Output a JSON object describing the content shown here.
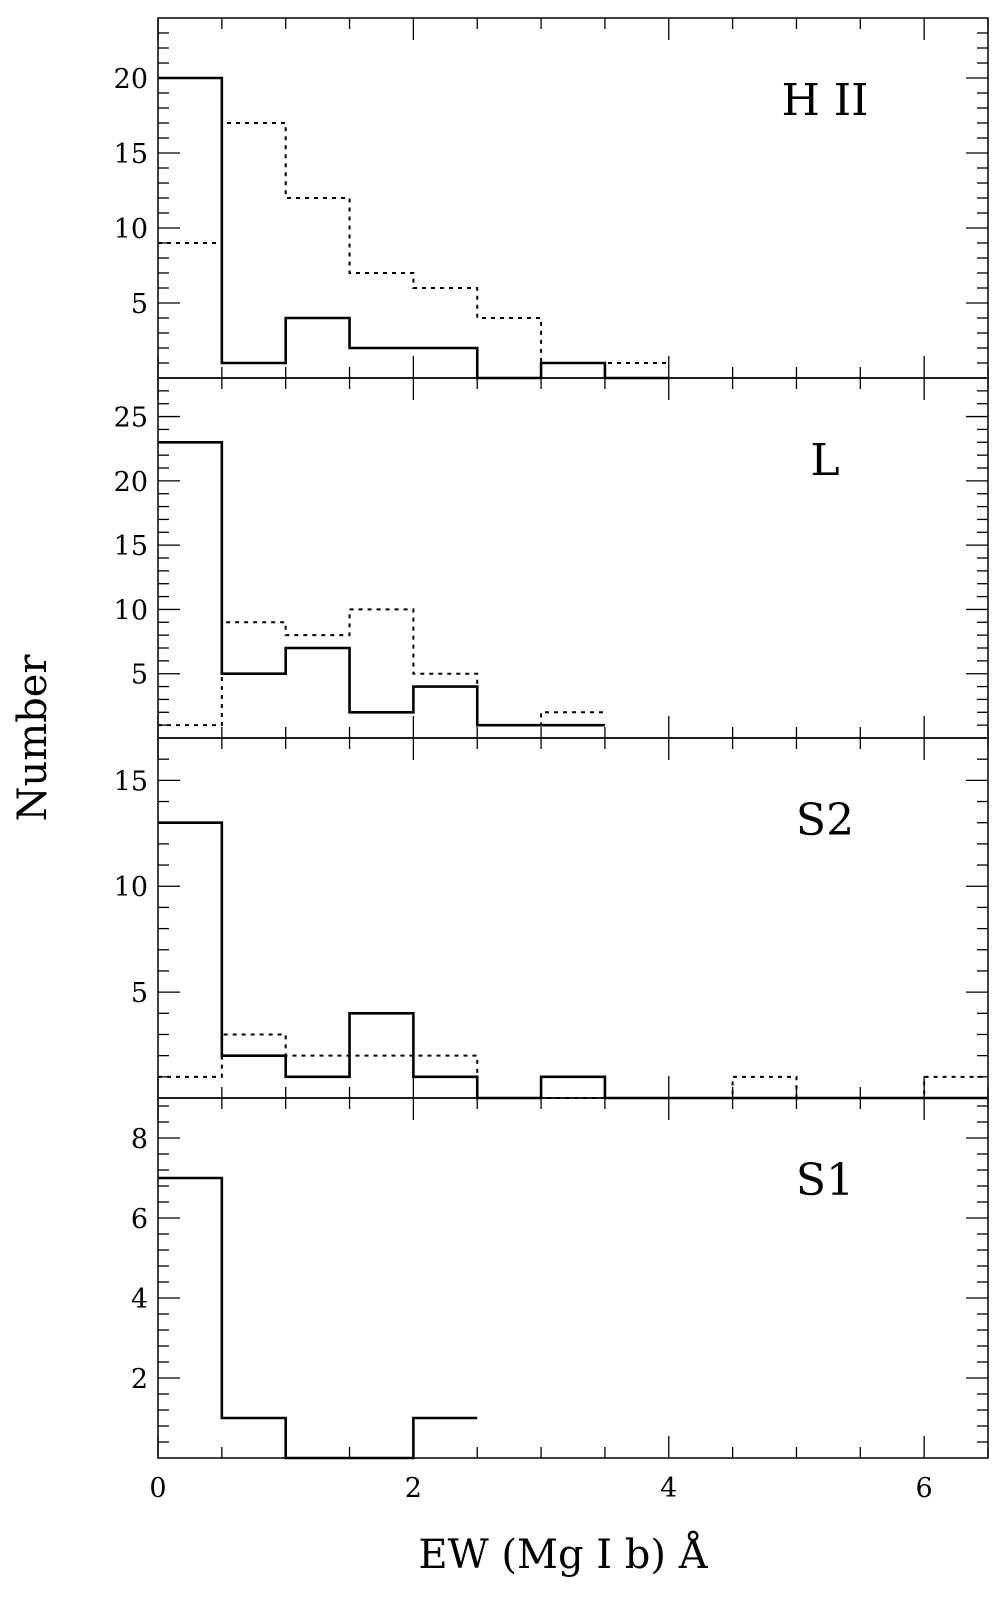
{
  "chart_data": [
    {
      "type": "histogram",
      "panel_label": "H II",
      "bin_edges": [
        0,
        0.5,
        1,
        1.5,
        2,
        2.5,
        3,
        3.5,
        4
      ],
      "series": [
        {
          "style": "solid",
          "counts": [
            20,
            1,
            4,
            2,
            2,
            0,
            1,
            0
          ]
        },
        {
          "style": "dotted",
          "counts": [
            9,
            17,
            12,
            7,
            6,
            4,
            1,
            1
          ]
        }
      ],
      "xlim": [
        0,
        6.5
      ],
      "ylim": [
        0,
        24
      ],
      "yticks": [
        5,
        10,
        15,
        20
      ]
    },
    {
      "type": "histogram",
      "panel_label": "L",
      "bin_edges": [
        0,
        0.5,
        1,
        1.5,
        2,
        2.5,
        3,
        3.5
      ],
      "series": [
        {
          "style": "solid",
          "counts": [
            23,
            5,
            7,
            2,
            4,
            1,
            1
          ]
        },
        {
          "style": "dotted",
          "counts": [
            1,
            9,
            8,
            10,
            5,
            1,
            2
          ]
        }
      ],
      "xlim": [
        0,
        6.5
      ],
      "ylim": [
        0,
        28
      ],
      "yticks": [
        5,
        10,
        15,
        20,
        25
      ]
    },
    {
      "type": "histogram",
      "panel_label": "S2",
      "bin_edges": [
        0,
        0.5,
        1,
        1.5,
        2,
        2.5,
        3,
        3.5,
        4,
        4.5,
        5,
        5.5,
        6,
        6.5
      ],
      "series": [
        {
          "style": "solid",
          "counts": [
            13,
            2,
            1,
            4,
            1,
            0,
            1,
            0,
            0,
            0,
            0,
            0,
            0
          ]
        },
        {
          "style": "dotted",
          "counts": [
            1,
            3,
            2,
            2,
            2,
            0,
            0,
            0,
            0,
            1,
            0,
            0,
            1
          ]
        }
      ],
      "xlim": [
        0,
        6.5
      ],
      "ylim": [
        0,
        17
      ],
      "yticks": [
        5,
        10,
        15
      ]
    },
    {
      "type": "histogram",
      "panel_label": "S1",
      "bin_edges": [
        0,
        0.5,
        1,
        1.5,
        2,
        2.5
      ],
      "series": [
        {
          "style": "solid",
          "counts": [
            7,
            1,
            0,
            0,
            1
          ]
        }
      ],
      "xlim": [
        0,
        6.5
      ],
      "ylim": [
        0,
        9
      ],
      "yticks": [
        2,
        4,
        6,
        8
      ]
    }
  ],
  "x_axis": {
    "label": "EW (Mg I b) Å",
    "ticks": [
      0,
      2,
      4,
      6
    ],
    "minor_step": 0.5
  },
  "y_axis_label": "Number"
}
